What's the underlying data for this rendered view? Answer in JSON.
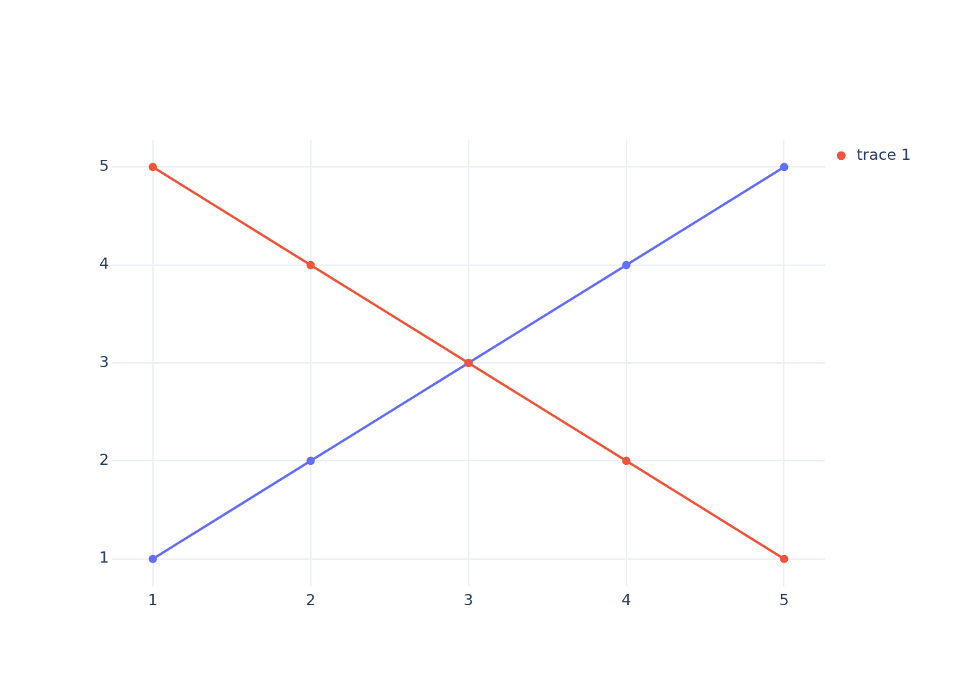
{
  "chart_data": {
    "type": "line",
    "x": [
      1,
      2,
      3,
      4,
      5
    ],
    "series": [
      {
        "color": "#636efa",
        "values": [
          1,
          2,
          3,
          4,
          5
        ]
      },
      {
        "name": "trace 1",
        "color": "#ef553b",
        "values": [
          5,
          4,
          3,
          2,
          1
        ]
      }
    ],
    "xlim": [
      0.74,
      5.26
    ],
    "ylim": [
      0.72,
      5.28
    ],
    "xticks": [
      1,
      2,
      3,
      4,
      5
    ],
    "yticks": [
      1,
      2,
      3,
      4,
      5
    ],
    "grid": true,
    "legend": "top right",
    "marker": "circle",
    "line_style": "solid"
  }
}
